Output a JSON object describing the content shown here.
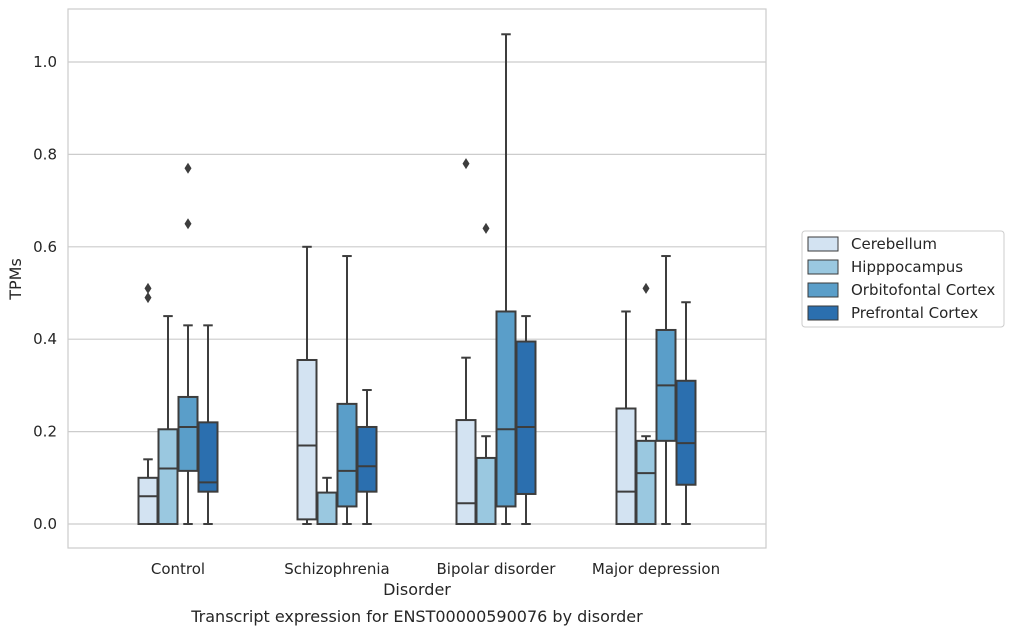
{
  "chart_data": {
    "type": "box",
    "caption": "Transcript expression for ENST00000590076 by disorder",
    "xlabel": "Disorder",
    "ylabel": "TPMs",
    "ylim": [
      -0.05,
      1.12
    ],
    "yticks": [
      0.0,
      0.2,
      0.4,
      0.6,
      0.8,
      1.0
    ],
    "ytick_labels": [
      "0.0",
      "0.2",
      "0.4",
      "0.6",
      "0.8",
      "1.0"
    ],
    "grid": true,
    "legend_position": "right",
    "categories": [
      "Control",
      "Schizophrenia",
      "Bipolar disorder",
      "Major depression"
    ],
    "series": [
      {
        "name": "Cerebellum",
        "color": "#d3e3f2",
        "boxes": [
          {
            "whisker_low": 0.0,
            "q1": 0.0,
            "median": 0.06,
            "q3": 0.1,
            "whisker_high": 0.14,
            "outliers": [
              0.49,
              0.51
            ]
          },
          {
            "whisker_low": 0.0,
            "q1": 0.01,
            "median": 0.17,
            "q3": 0.355,
            "whisker_high": 0.6,
            "outliers": []
          },
          {
            "whisker_low": 0.0,
            "q1": 0.0,
            "median": 0.045,
            "q3": 0.225,
            "whisker_high": 0.36,
            "outliers": [
              0.78
            ]
          },
          {
            "whisker_low": 0.0,
            "q1": 0.0,
            "median": 0.07,
            "q3": 0.25,
            "whisker_high": 0.46,
            "outliers": []
          }
        ]
      },
      {
        "name": "Hipppocampus",
        "color": "#9ac8e0",
        "boxes": [
          {
            "whisker_low": 0.0,
            "q1": 0.0,
            "median": 0.12,
            "q3": 0.205,
            "whisker_high": 0.45,
            "outliers": []
          },
          {
            "whisker_low": 0.0,
            "q1": 0.0,
            "median": 0.0,
            "q3": 0.068,
            "whisker_high": 0.1,
            "outliers": []
          },
          {
            "whisker_low": 0.0,
            "q1": 0.0,
            "median": 0.0,
            "q3": 0.143,
            "whisker_high": 0.19,
            "outliers": [
              0.64
            ]
          },
          {
            "whisker_low": 0.0,
            "q1": 0.0,
            "median": 0.11,
            "q3": 0.18,
            "whisker_high": 0.19,
            "outliers": [
              0.51
            ]
          }
        ]
      },
      {
        "name": "Orbitofontal Cortex",
        "color": "#5a9ec9",
        "boxes": [
          {
            "whisker_low": 0.0,
            "q1": 0.115,
            "median": 0.21,
            "q3": 0.275,
            "whisker_high": 0.43,
            "outliers": [
              0.65,
              0.77
            ]
          },
          {
            "whisker_low": 0.0,
            "q1": 0.038,
            "median": 0.115,
            "q3": 0.26,
            "whisker_high": 0.58,
            "outliers": []
          },
          {
            "whisker_low": 0.0,
            "q1": 0.038,
            "median": 0.205,
            "q3": 0.46,
            "whisker_high": 1.06,
            "outliers": []
          },
          {
            "whisker_low": 0.0,
            "q1": 0.18,
            "median": 0.3,
            "q3": 0.42,
            "whisker_high": 0.58,
            "outliers": []
          }
        ]
      },
      {
        "name": "Prefrontal Cortex",
        "color": "#2b6faf",
        "boxes": [
          {
            "whisker_low": 0.0,
            "q1": 0.07,
            "median": 0.09,
            "q3": 0.22,
            "whisker_high": 0.43,
            "outliers": []
          },
          {
            "whisker_low": 0.0,
            "q1": 0.07,
            "median": 0.125,
            "q3": 0.21,
            "whisker_high": 0.29,
            "outliers": []
          },
          {
            "whisker_low": 0.0,
            "q1": 0.065,
            "median": 0.21,
            "q3": 0.395,
            "whisker_high": 0.45,
            "outliers": []
          },
          {
            "whisker_low": 0.0,
            "q1": 0.085,
            "median": 0.175,
            "q3": 0.31,
            "whisker_high": 0.48,
            "outliers": []
          }
        ]
      }
    ]
  }
}
